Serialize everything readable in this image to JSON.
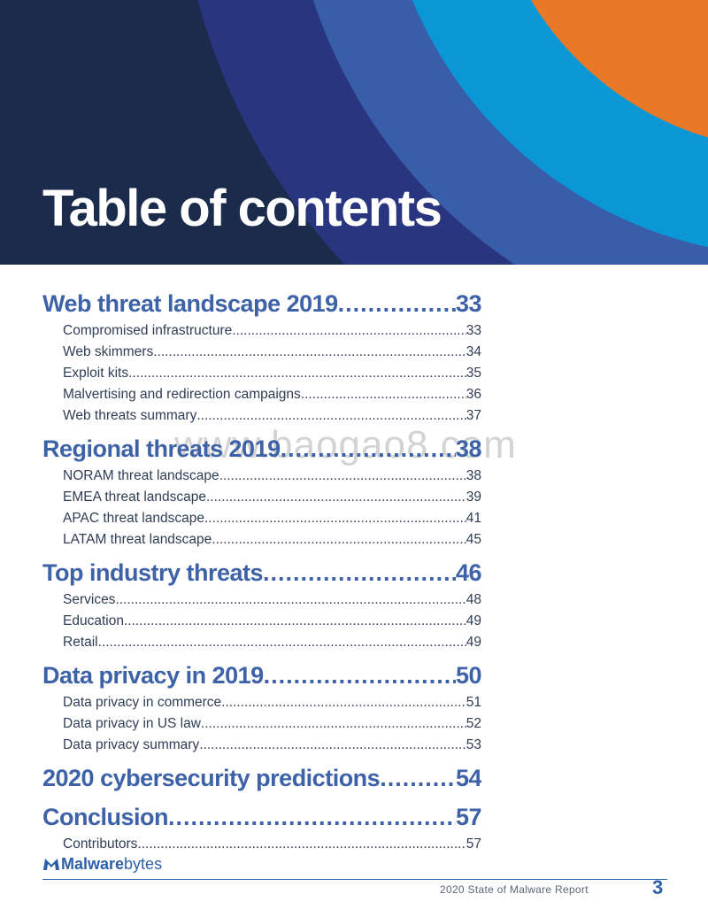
{
  "header": {
    "title": "Table of contents",
    "colors": {
      "navy": "#1b2b4c",
      "indigo": "#2a3580",
      "blue": "#385ea9",
      "cyan": "#0b97d6",
      "orange": "#e97927"
    }
  },
  "watermark": "www.baogao8.com",
  "toc": [
    {
      "title": "Web threat landscape 2019",
      "page": "33",
      "items": [
        {
          "title": "Compromised infrastructure",
          "page": "33"
        },
        {
          "title": "Web skimmers",
          "page": "34"
        },
        {
          "title": "Exploit kits",
          "page": "35"
        },
        {
          "title": "Malvertising and redirection campaigns",
          "page": "36"
        },
        {
          "title": "Web threats summary",
          "page": "37"
        }
      ]
    },
    {
      "title": "Regional threats 2019",
      "page": "38",
      "items": [
        {
          "title": "NORAM threat landscape",
          "page": "38"
        },
        {
          "title": "EMEA threat landscape",
          "page": "39"
        },
        {
          "title": "APAC threat landscape",
          "page": "41"
        },
        {
          "title": "LATAM threat landscape",
          "page": "45"
        }
      ]
    },
    {
      "title": "Top industry threats",
      "page": "46",
      "items": [
        {
          "title": "Services",
          "page": "48"
        },
        {
          "title": "Education",
          "page": "49"
        },
        {
          "title": "Retail",
          "page": "49"
        }
      ]
    },
    {
      "title": "Data privacy in 2019",
      "page": "50",
      "items": [
        {
          "title": "Data privacy in commerce",
          "page": "51"
        },
        {
          "title": "Data privacy in US law",
          "page": "52"
        },
        {
          "title": "Data privacy summary",
          "page": "53"
        }
      ]
    },
    {
      "title": "2020 cybersecurity predictions",
      "page": "54",
      "items": []
    },
    {
      "title": "Conclusion",
      "page": "57",
      "items": [
        {
          "title": "Contributors",
          "page": "57"
        }
      ]
    }
  ],
  "footer": {
    "logo_strong": "Malware",
    "logo_light": "bytes",
    "report_name": "2020 State of Malware Report",
    "page_number": "3"
  }
}
